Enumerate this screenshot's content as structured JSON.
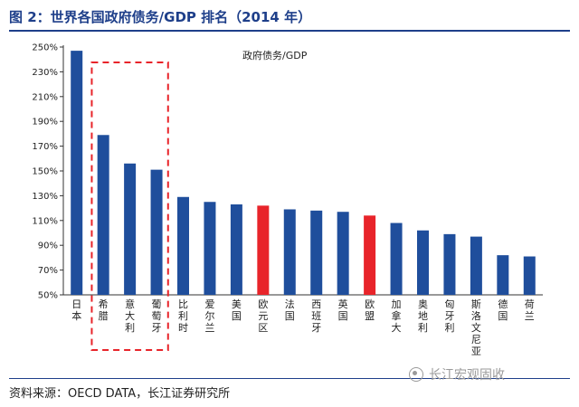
{
  "figure": {
    "title": "图 2：世界各国政府债务/GDP 排名（2014 年）",
    "source": "资料来源：OECD DATA，长江证券研究所",
    "watermark": "长江宏观固收",
    "watermark_icon": "wechat-logo-icon"
  },
  "colors": {
    "accent": "#1e3f8a",
    "bar_default": "#1f4e9c",
    "bar_highlight": "#e8242a",
    "dashed_box": "#e8242a"
  },
  "chart_data": {
    "type": "bar",
    "title": "政府债务/GDP",
    "xlabel": "",
    "ylabel": "",
    "ylim": [
      50,
      250
    ],
    "yticks": [
      "50%",
      "70%",
      "90%",
      "110%",
      "130%",
      "150%",
      "170%",
      "190%",
      "210%",
      "230%",
      "250%"
    ],
    "ytick_values": [
      50,
      70,
      90,
      110,
      130,
      150,
      170,
      190,
      210,
      230,
      250
    ],
    "grid": false,
    "legend": "top-center",
    "categories": [
      "日本",
      "希腊",
      "意大利",
      "葡萄牙",
      "比利时",
      "爱尔兰",
      "美国",
      "欧元区",
      "法国",
      "西班牙",
      "英国",
      "欧盟",
      "加拿大",
      "奥地利",
      "匈牙利",
      "斯洛文尼亚",
      "德国",
      "荷兰"
    ],
    "series": [
      {
        "name": "政府债务/GDP",
        "values": [
          247,
          179,
          156,
          151,
          129,
          125,
          123,
          122,
          119,
          118,
          117,
          114,
          108,
          102,
          99,
          97,
          82,
          81
        ]
      }
    ],
    "highlight_categories": [
      "欧元区",
      "欧盟"
    ],
    "boxed_categories": [
      "希腊",
      "意大利",
      "葡萄牙"
    ]
  }
}
